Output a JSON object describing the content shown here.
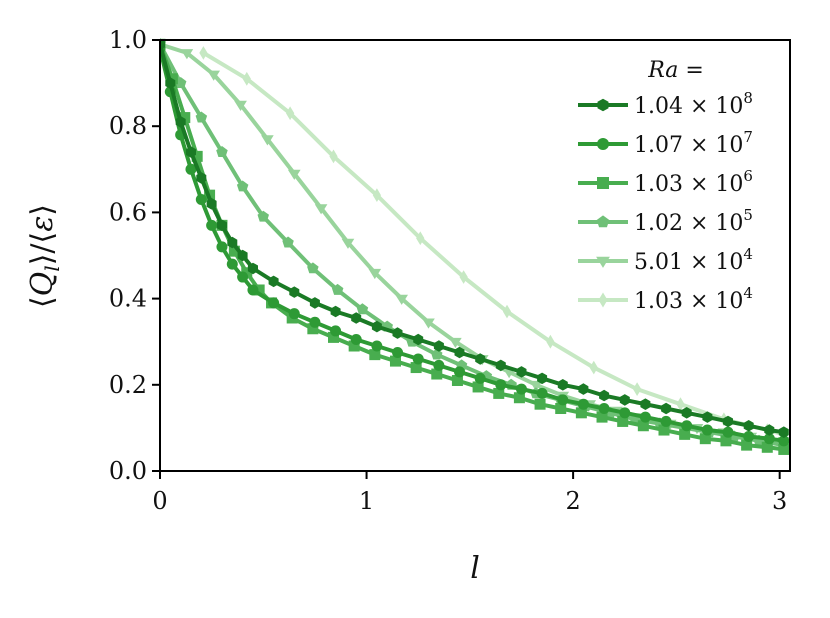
{
  "chart_data": {
    "type": "line",
    "xlabel": "l",
    "ylabel": "⟨Q_l⟩/⟨ε⟩",
    "xlim": [
      0,
      3.05
    ],
    "ylim": [
      0,
      1.0
    ],
    "xticks": [
      "0",
      "1",
      "2",
      "3"
    ],
    "xtick_values": [
      0,
      1,
      2,
      3
    ],
    "yticks": [
      "0.0",
      "0.2",
      "0.4",
      "0.6",
      "0.8",
      "1.0"
    ],
    "ytick_values": [
      0,
      0.2,
      0.4,
      0.6,
      0.8,
      1.0
    ],
    "grid": false,
    "legend": {
      "title": "Ra =",
      "position": "top-right"
    },
    "series": [
      {
        "name": "1.04 × 10^8",
        "mantissa": "1.04 × 10",
        "exponent": "8",
        "color": "#1a7a25",
        "marker": "hexagon",
        "x": [
          0,
          0.05,
          0.1,
          0.15,
          0.2,
          0.25,
          0.3,
          0.35,
          0.4,
          0.45,
          0.55,
          0.65,
          0.75,
          0.85,
          0.95,
          1.05,
          1.15,
          1.25,
          1.35,
          1.45,
          1.55,
          1.65,
          1.75,
          1.85,
          1.95,
          2.05,
          2.15,
          2.25,
          2.35,
          2.45,
          2.55,
          2.65,
          2.75,
          2.85,
          2.95,
          3.02
        ],
        "y": [
          0.99,
          0.9,
          0.81,
          0.74,
          0.68,
          0.62,
          0.57,
          0.53,
          0.5,
          0.47,
          0.44,
          0.415,
          0.39,
          0.37,
          0.355,
          0.335,
          0.32,
          0.305,
          0.29,
          0.275,
          0.26,
          0.245,
          0.23,
          0.215,
          0.2,
          0.19,
          0.175,
          0.165,
          0.155,
          0.145,
          0.135,
          0.125,
          0.115,
          0.105,
          0.095,
          0.09
        ]
      },
      {
        "name": "1.07 × 10^7",
        "mantissa": "1.07 × 10",
        "exponent": "7",
        "color": "#2e9a35",
        "marker": "circle",
        "x": [
          0,
          0.05,
          0.1,
          0.15,
          0.2,
          0.25,
          0.3,
          0.35,
          0.4,
          0.45,
          0.55,
          0.65,
          0.75,
          0.85,
          0.95,
          1.05,
          1.15,
          1.25,
          1.35,
          1.45,
          1.55,
          1.65,
          1.75,
          1.85,
          1.95,
          2.05,
          2.15,
          2.25,
          2.35,
          2.45,
          2.55,
          2.65,
          2.75,
          2.85,
          2.95,
          3.02
        ],
        "y": [
          0.98,
          0.88,
          0.78,
          0.7,
          0.63,
          0.57,
          0.52,
          0.48,
          0.45,
          0.42,
          0.39,
          0.365,
          0.345,
          0.325,
          0.305,
          0.29,
          0.275,
          0.26,
          0.245,
          0.23,
          0.215,
          0.2,
          0.19,
          0.18,
          0.165,
          0.155,
          0.145,
          0.135,
          0.125,
          0.115,
          0.105,
          0.095,
          0.09,
          0.08,
          0.075,
          0.07
        ]
      },
      {
        "name": "1.03 × 10^6",
        "mantissa": "1.03 × 10",
        "exponent": "6",
        "color": "#48ad4f",
        "marker": "square",
        "x": [
          0,
          0.06,
          0.12,
          0.18,
          0.24,
          0.3,
          0.36,
          0.42,
          0.48,
          0.54,
          0.64,
          0.74,
          0.84,
          0.94,
          1.04,
          1.14,
          1.24,
          1.34,
          1.44,
          1.54,
          1.64,
          1.74,
          1.84,
          1.94,
          2.04,
          2.14,
          2.24,
          2.34,
          2.44,
          2.54,
          2.64,
          2.74,
          2.84,
          2.94,
          3.02
        ],
        "y": [
          0.99,
          0.91,
          0.82,
          0.73,
          0.64,
          0.57,
          0.51,
          0.46,
          0.42,
          0.39,
          0.355,
          0.33,
          0.31,
          0.29,
          0.27,
          0.255,
          0.24,
          0.225,
          0.21,
          0.195,
          0.18,
          0.17,
          0.155,
          0.145,
          0.135,
          0.125,
          0.115,
          0.105,
          0.095,
          0.085,
          0.075,
          0.07,
          0.06,
          0.055,
          0.05
        ]
      },
      {
        "name": "1.02 × 10^5",
        "mantissa": "1.02 × 10",
        "exponent": "5",
        "color": "#6fc077",
        "marker": "pentagon",
        "x": [
          0,
          0.1,
          0.2,
          0.3,
          0.4,
          0.5,
          0.62,
          0.74,
          0.86,
          0.98,
          1.1,
          1.22,
          1.34,
          1.46,
          1.58,
          1.7,
          1.82,
          1.94,
          2.06,
          2.18,
          2.3,
          2.42,
          2.54,
          2.66,
          2.78,
          2.9,
          3.02
        ],
        "y": [
          0.99,
          0.9,
          0.82,
          0.74,
          0.66,
          0.59,
          0.53,
          0.47,
          0.42,
          0.375,
          0.335,
          0.3,
          0.27,
          0.245,
          0.22,
          0.2,
          0.18,
          0.165,
          0.15,
          0.135,
          0.12,
          0.11,
          0.1,
          0.09,
          0.08,
          0.07,
          0.06
        ]
      },
      {
        "name": "5.01 × 10^4",
        "mantissa": "5.01 × 10",
        "exponent": "4",
        "color": "#99d49c",
        "marker": "triangle-down",
        "x": [
          0,
          0.13,
          0.26,
          0.39,
          0.52,
          0.65,
          0.78,
          0.91,
          1.04,
          1.17,
          1.3,
          1.43,
          1.56,
          1.69,
          1.82,
          1.95,
          2.08,
          2.21,
          2.34,
          2.47,
          2.6,
          2.73,
          2.86,
          3.02
        ],
        "y": [
          0.99,
          0.97,
          0.92,
          0.85,
          0.77,
          0.69,
          0.61,
          0.53,
          0.46,
          0.4,
          0.345,
          0.3,
          0.26,
          0.23,
          0.2,
          0.175,
          0.155,
          0.14,
          0.125,
          0.11,
          0.1,
          0.09,
          0.08,
          0.07
        ]
      },
      {
        "name": "1.03 × 10^4",
        "mantissa": "1.03 × 10",
        "exponent": "4",
        "color": "#c6e8c3",
        "marker": "thin-diamond",
        "x": [
          0.21,
          0.42,
          0.63,
          0.84,
          1.05,
          1.26,
          1.47,
          1.68,
          1.89,
          2.1,
          2.31,
          2.52,
          2.73,
          2.94,
          3.02
        ],
        "y": [
          0.97,
          0.91,
          0.83,
          0.73,
          0.64,
          0.54,
          0.45,
          0.37,
          0.3,
          0.24,
          0.19,
          0.155,
          0.12,
          0.095,
          0.085
        ]
      }
    ]
  }
}
